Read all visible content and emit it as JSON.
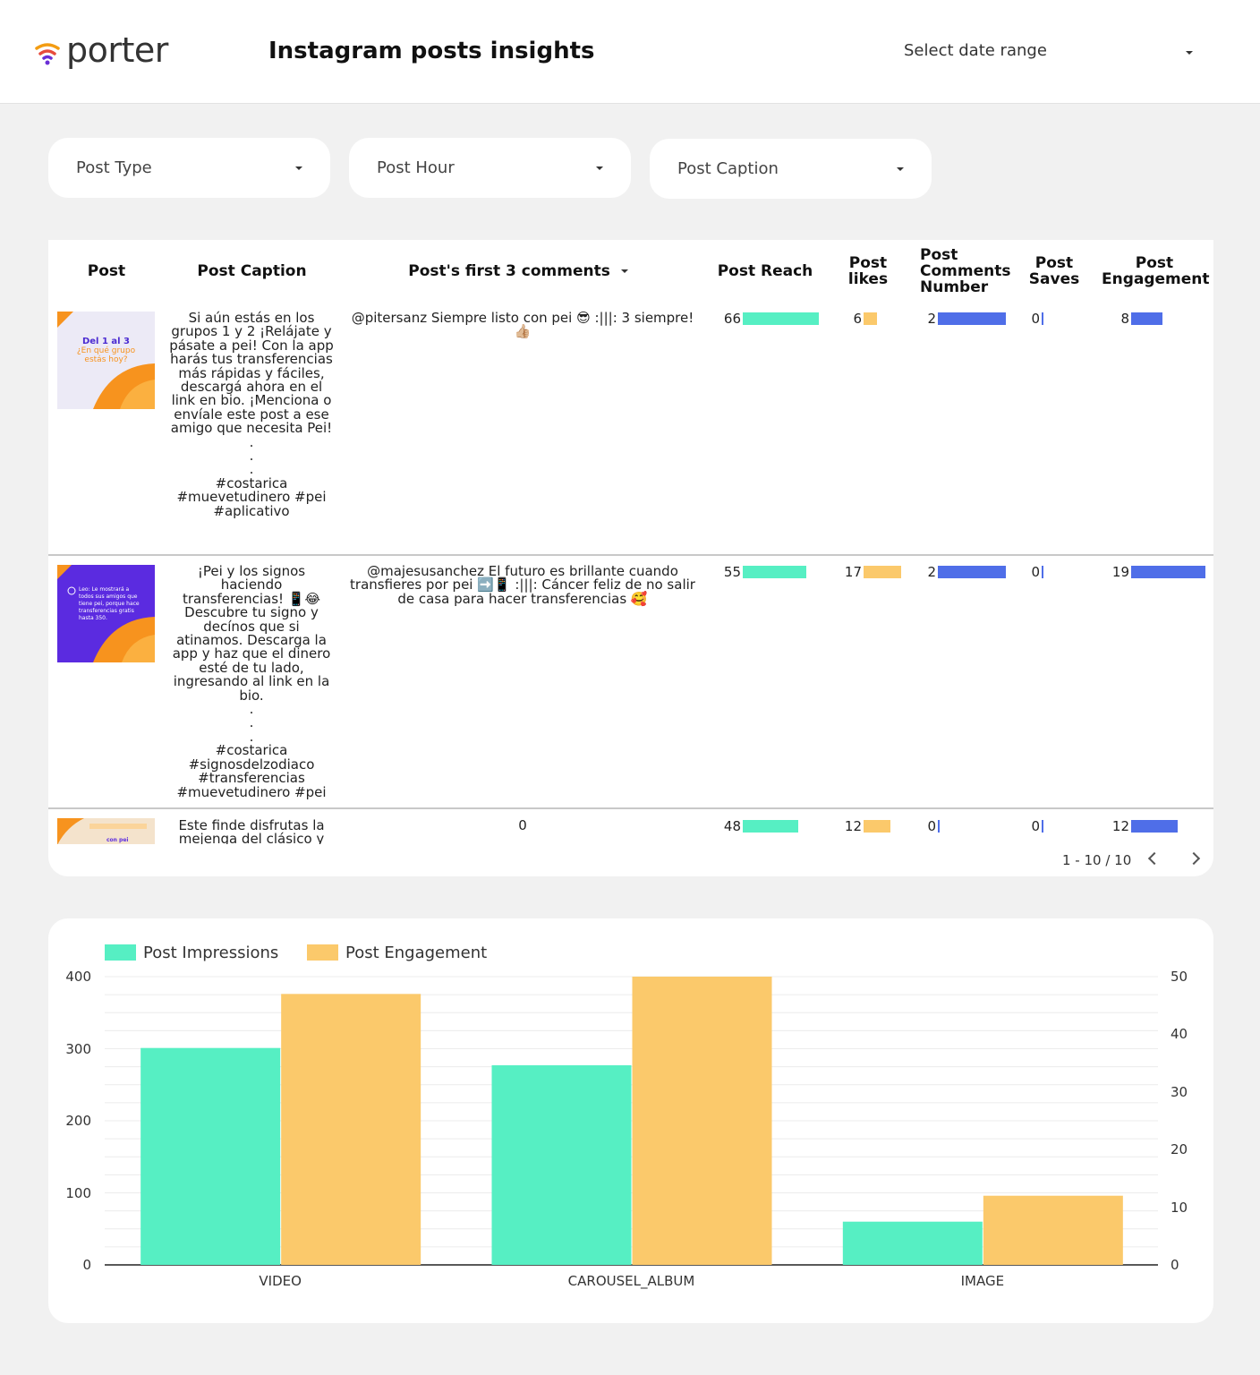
{
  "header": {
    "logo_text": "porter",
    "title": "Instagram posts insights",
    "date_range_label": "Select date range"
  },
  "filters": [
    {
      "label": "Post Type"
    },
    {
      "label": "Post Hour"
    },
    {
      "label": "Post Caption"
    }
  ],
  "table": {
    "columns": {
      "post": "Post",
      "caption": "Post Caption",
      "comments": "Post's first 3 comments",
      "reach": "Post Reach",
      "likes_1": "Post",
      "likes_2": "likes",
      "comments_num_1": "Post",
      "comments_num_2": "Comments",
      "comments_num_3": "Number",
      "saves_1": "Post",
      "saves_2": "Saves",
      "engagement_1": "Post",
      "engagement_2": "Engagement"
    },
    "rows": [
      {
        "thumb_text_1": "Del 1 al 3",
        "thumb_text_2": "¿En qué grupo estás hoy?",
        "caption": "Si aún estás en los grupos 1 y 2 ¡Relájate y pásate a pei! Con la app harás tus transferencias más rápidas y fáciles, descargá ahora en el link en bio. ¡Menciona o envíale este post a ese amigo que necesita Pei!\n.\n.\n.\n#costarica #muevetudinero #pei #aplicativo",
        "comment": "@pitersanz Siempre listo con pei 😎 :|||: 3 siempre! 👍🏼",
        "reach": 66,
        "likes": 6,
        "comments_number": 2,
        "saves": 0,
        "engagement": 8
      },
      {
        "thumb_text_1": "Leo: Le mostrará a todos sus amigos que tiene pei, porque hace transferencias gratis hasta 350.",
        "caption": "¡Pei y los signos haciendo transferencias! 📱😂 Descubre tu signo y decínos que si atinamos. Descarga la app y haz que el dinero esté de tu lado, ingresando al link en la bio.\n.\n.\n.\n#costarica #signosdelzodiaco #transferencias #muevetudinero #pei",
        "comment": "@majesusanchez El futuro es brillante cuando transfieres por pei ➡️📱 :|||: Cáncer feliz de no salir de casa para hacer transferencias 🥰",
        "reach": 55,
        "likes": 17,
        "comments_number": 2,
        "saves": 0,
        "engagement": 19
      },
      {
        "thumb_text_1": "con pei",
        "caption": "Este finde disfrutas la mejenga del clásico y",
        "comment": "0",
        "reach": 48,
        "likes": 12,
        "comments_number": 0,
        "saves": 0,
        "engagement": 12
      }
    ],
    "pagination": "1 - 10 / 10"
  },
  "colors": {
    "reach": "#56efc3",
    "likes": "#fbc96b",
    "comments_number": "#4f6ee8",
    "saves": "#4f6ee8",
    "engagement": "#4f6ee8",
    "thumb_orange": "#f7931e",
    "thumb_purple": "#5b2be0"
  },
  "chart_data": {
    "type": "bar",
    "categories": [
      "VIDEO",
      "CAROUSEL_ALBUM",
      "IMAGE"
    ],
    "series": [
      {
        "name": "Post Impressions",
        "values": [
          301,
          277,
          60
        ],
        "axis": "left",
        "color": "#56efc3"
      },
      {
        "name": "Post Engagement",
        "values": [
          47,
          50,
          12
        ],
        "axis": "right",
        "color": "#fbc96b"
      }
    ],
    "left_axis": {
      "ylim": [
        0,
        400
      ],
      "ticks": [
        0,
        100,
        200,
        300,
        400
      ]
    },
    "right_axis": {
      "ylim": [
        0,
        50
      ],
      "ticks": [
        0,
        10,
        20,
        30,
        40,
        50
      ]
    },
    "legend": "top-left",
    "grid": true
  }
}
